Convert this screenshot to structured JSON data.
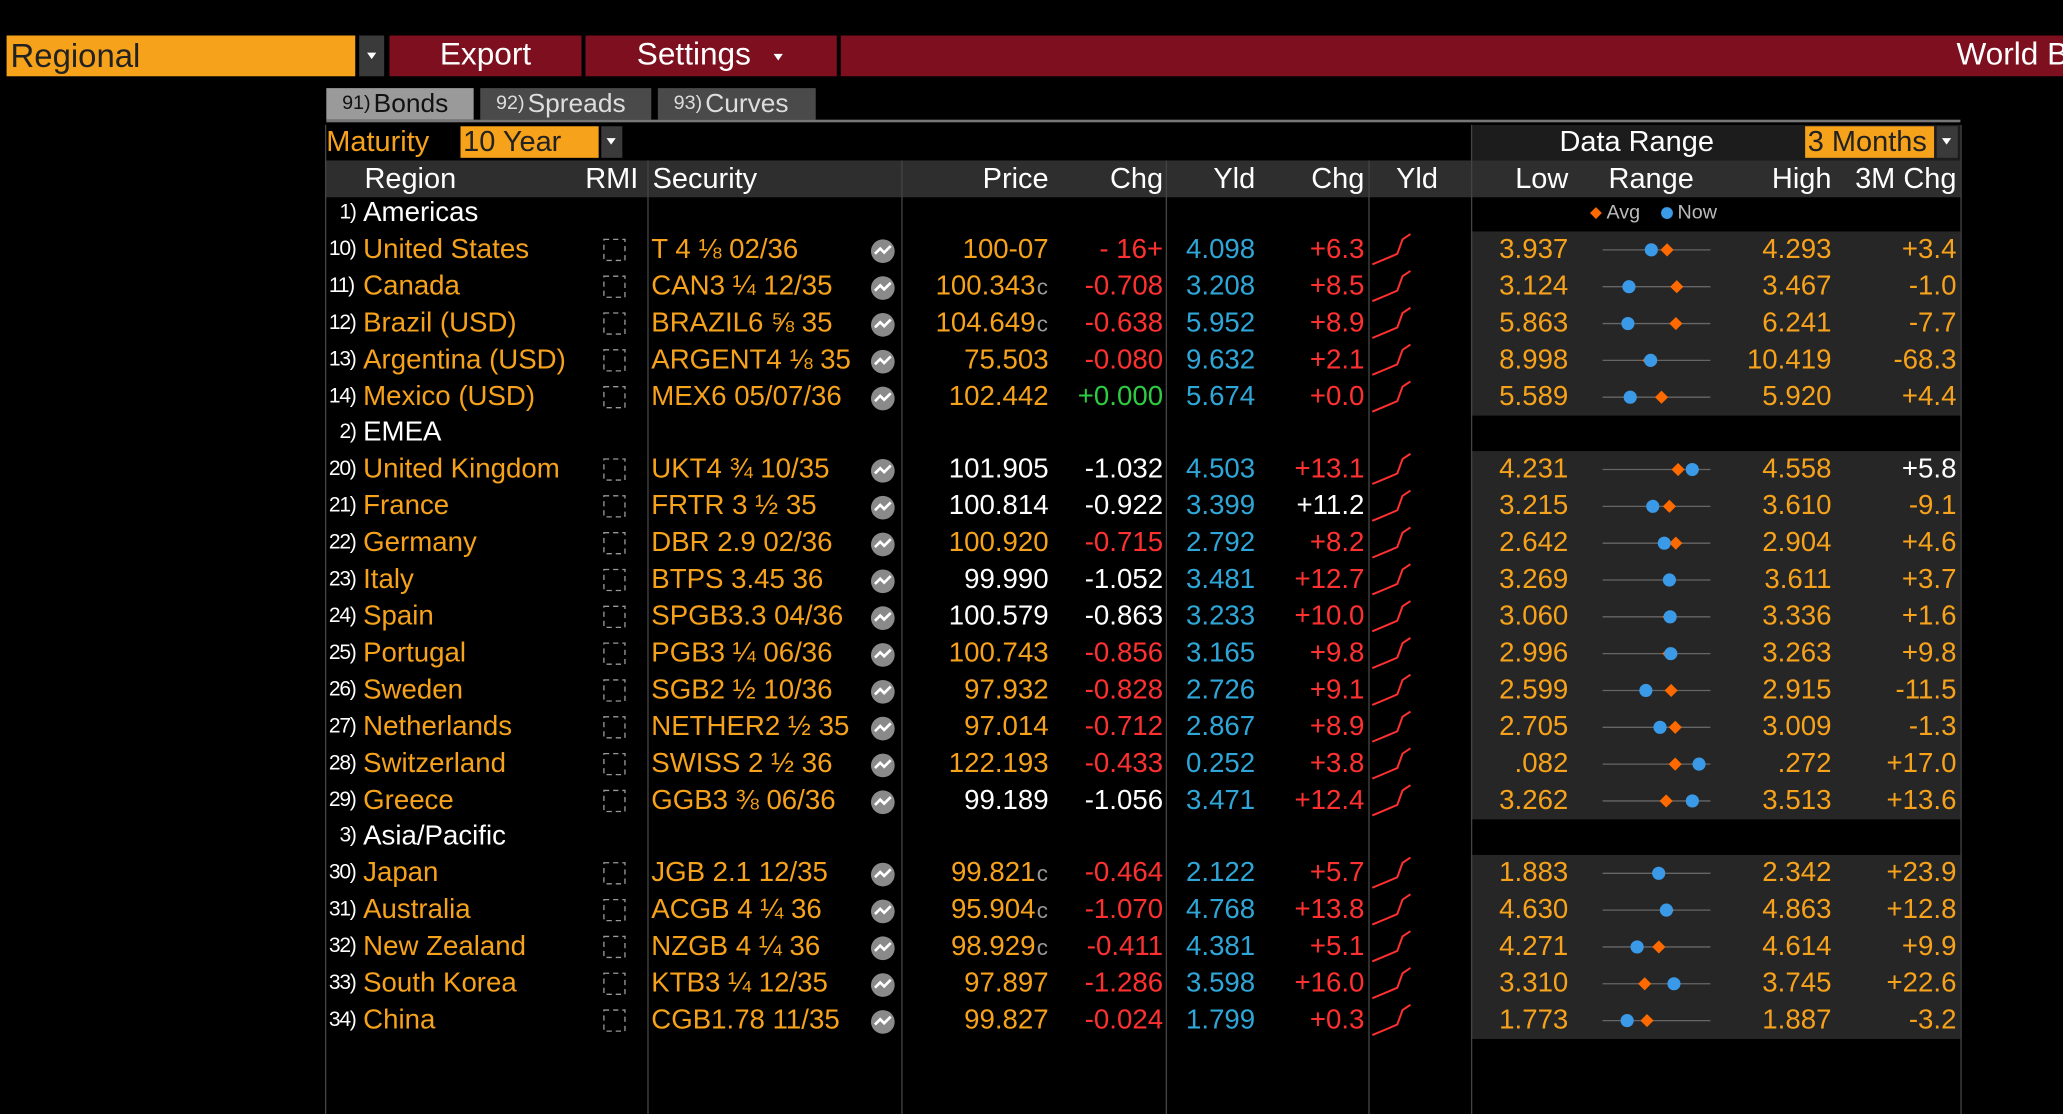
{
  "toolbar": {
    "menu": "Regional",
    "export": "Export",
    "settings": "Settings",
    "title": "World B"
  },
  "tabs": [
    {
      "num": "91)",
      "label": "Bonds"
    },
    {
      "num": "92)",
      "label": "Spreads"
    },
    {
      "num": "93)",
      "label": "Curves"
    }
  ],
  "maturity": {
    "label": "Maturity",
    "value": "10 Year"
  },
  "data_range": {
    "label": "Data Range",
    "value": "3 Months"
  },
  "headers": {
    "region": "Region",
    "rmi": "RMI",
    "security": "Security",
    "price": "Price",
    "chg": "Chg",
    "yld": "Yld",
    "yld_chg": "Chg",
    "yld_chart": "Yld",
    "low": "Low",
    "range": "Range",
    "high": "High",
    "chg_3m": "3M Chg"
  },
  "legend": {
    "avg": "Avg",
    "now": "Now"
  },
  "groups": [
    {
      "num": "1)",
      "name": "Americas",
      "rows": [
        {
          "num": "10)",
          "region": "United States",
          "security": "T 4 ⅛ 02/36",
          "price": "100-07",
          "price_color": "#f7a21b",
          "chg": "- 16+",
          "chg_color": "#ff3030",
          "yld": "4.098",
          "yld_chg": "+6.3",
          "yld_chg_color": "#ff3030",
          "low": "3.937",
          "high": "4.293",
          "chg_3m": "+3.4",
          "chg_3m_color": "#f7a21b",
          "avg": 4.15
        },
        {
          "num": "11)",
          "region": "Canada",
          "security": "CAN3 ¼ 12/35",
          "price": "100.343",
          "price_suffix": "c",
          "price_color": "#f7a21b",
          "chg": "-0.708",
          "chg_color": "#ff3030",
          "yld": "3.208",
          "yld_chg": "+8.5",
          "yld_chg_color": "#ff3030",
          "low": "3.124",
          "high": "3.467",
          "chg_3m": "-1.0",
          "chg_3m_color": "#f7a21b",
          "avg": 3.36
        },
        {
          "num": "12)",
          "region": "Brazil (USD)",
          "security": "BRAZIL6 ⅝ 35",
          "price": "104.649",
          "price_suffix": "c",
          "price_color": "#f7a21b",
          "chg": "-0.638",
          "chg_color": "#ff3030",
          "yld": "5.952",
          "yld_chg": "+8.9",
          "yld_chg_color": "#ff3030",
          "low": "5.863",
          "high": "6.241",
          "chg_3m": "-7.7",
          "chg_3m_color": "#f7a21b",
          "avg": 6.12
        },
        {
          "num": "13)",
          "region": "Argentina (USD)",
          "security": "ARGENT4 ⅛ 35",
          "price": "75.503",
          "price_color": "#f7a21b",
          "chg": "-0.080",
          "chg_color": "#ff3030",
          "yld": "9.632",
          "yld_chg": "+2.1",
          "yld_chg_color": "#ff3030",
          "low": "8.998",
          "high": "10.419",
          "chg_3m": "-68.3",
          "chg_3m_color": "#f7a21b",
          "avg": 9.61
        },
        {
          "num": "14)",
          "region": "Mexico (USD)",
          "security": "MEX6 05/07/36",
          "price": "102.442",
          "price_color": "#f7a21b",
          "chg": "+0.000",
          "chg_color": "#2ecc40",
          "yld": "5.674",
          "yld_chg": "+0.0",
          "yld_chg_color": "#ff3030",
          "low": "5.589",
          "high": "5.920",
          "chg_3m": "+4.4",
          "chg_3m_color": "#f7a21b",
          "avg": 5.77
        }
      ]
    },
    {
      "num": "2)",
      "name": "EMEA",
      "rows": [
        {
          "num": "20)",
          "region": "United Kingdom",
          "security": "UKT4 ¾ 10/35",
          "price": "101.905",
          "price_color": "#ffffff",
          "chg": "-1.032",
          "chg_color": "#ffffff",
          "yld": "4.503",
          "yld_chg": "+13.1",
          "yld_chg_color": "#ff3030",
          "low": "4.231",
          "high": "4.558",
          "chg_3m": "+5.8",
          "chg_3m_color": "#ffffff",
          "avg": 4.46
        },
        {
          "num": "21)",
          "region": "France",
          "security": "FRTR 3 ½ 35",
          "price": "100.814",
          "price_color": "#ffffff",
          "chg": "-0.922",
          "chg_color": "#ffffff",
          "yld": "3.399",
          "yld_chg": "+11.2",
          "yld_chg_color": "#ffffff",
          "low": "3.215",
          "high": "3.610",
          "chg_3m": "-9.1",
          "chg_3m_color": "#f7a21b",
          "avg": 3.46
        },
        {
          "num": "22)",
          "region": "Germany",
          "security": "DBR 2.9 02/36",
          "price": "100.920",
          "price_color": "#f7a21b",
          "chg": "-0.715",
          "chg_color": "#ff3030",
          "yld": "2.792",
          "yld_chg": "+8.2",
          "yld_chg_color": "#ff3030",
          "low": "2.642",
          "high": "2.904",
          "chg_3m": "+4.6",
          "chg_3m_color": "#f7a21b",
          "avg": 2.82
        },
        {
          "num": "23)",
          "region": "Italy",
          "security": "BTPS 3.45 36",
          "price": "99.990",
          "price_color": "#ffffff",
          "chg": "-1.052",
          "chg_color": "#ffffff",
          "yld": "3.481",
          "yld_chg": "+12.7",
          "yld_chg_color": "#ff3030",
          "low": "3.269",
          "high": "3.611",
          "chg_3m": "+3.7",
          "chg_3m_color": "#f7a21b",
          "avg": 3.48
        },
        {
          "num": "24)",
          "region": "Spain",
          "security": "SPGB3.3 04/36",
          "price": "100.579",
          "price_color": "#ffffff",
          "chg": "-0.863",
          "chg_color": "#ffffff",
          "yld": "3.233",
          "yld_chg": "+10.0",
          "yld_chg_color": "#ff3030",
          "low": "3.060",
          "high": "3.336",
          "chg_3m": "+1.6",
          "chg_3m_color": "#f7a21b",
          "avg": 3.23
        },
        {
          "num": "25)",
          "region": "Portugal",
          "security": "PGB3 ¼ 06/36",
          "price": "100.743",
          "price_color": "#f7a21b",
          "chg": "-0.856",
          "chg_color": "#ff3030",
          "yld": "3.165",
          "yld_chg": "+9.8",
          "yld_chg_color": "#ff3030",
          "low": "2.996",
          "high": "3.263",
          "chg_3m": "+9.8",
          "chg_3m_color": "#f7a21b",
          "avg": 3.16
        },
        {
          "num": "26)",
          "region": "Sweden",
          "security": "SGB2 ½ 10/36",
          "price": "97.932",
          "price_color": "#f7a21b",
          "chg": "-0.828",
          "chg_color": "#ff3030",
          "yld": "2.726",
          "yld_chg": "+9.1",
          "yld_chg_color": "#ff3030",
          "low": "2.599",
          "high": "2.915",
          "chg_3m": "-11.5",
          "chg_3m_color": "#f7a21b",
          "avg": 2.8
        },
        {
          "num": "27)",
          "region": "Netherlands",
          "security": "NETHER2 ½ 35",
          "price": "97.014",
          "price_color": "#f7a21b",
          "chg": "-0.712",
          "chg_color": "#ff3030",
          "yld": "2.867",
          "yld_chg": "+8.9",
          "yld_chg_color": "#ff3030",
          "low": "2.705",
          "high": "3.009",
          "chg_3m": "-1.3",
          "chg_3m_color": "#f7a21b",
          "avg": 2.91
        },
        {
          "num": "28)",
          "region": "Switzerland",
          "security": "SWISS 2 ½ 36",
          "price": "122.193",
          "price_color": "#f7a21b",
          "chg": "-0.433",
          "chg_color": "#ff3030",
          "yld": "0.252",
          "yld_chg": "+3.8",
          "yld_chg_color": "#ff3030",
          "low": ".082",
          "high": ".272",
          "chg_3m": "+17.0",
          "chg_3m_color": "#f7a21b",
          "avg": 0.21
        },
        {
          "num": "29)",
          "region": "Greece",
          "security": "GGB3 ⅜ 06/36",
          "price": "99.189",
          "price_color": "#ffffff",
          "chg": "-1.056",
          "chg_color": "#ffffff",
          "yld": "3.471",
          "yld_chg": "+12.4",
          "yld_chg_color": "#ff3030",
          "low": "3.262",
          "high": "3.513",
          "chg_3m": "+13.6",
          "chg_3m_color": "#f7a21b",
          "avg": 3.41
        }
      ]
    },
    {
      "num": "3)",
      "name": "Asia/Pacific",
      "rows": [
        {
          "num": "30)",
          "region": "Japan",
          "security": "JGB 2.1 12/35",
          "price": "99.821",
          "price_suffix": "c",
          "price_color": "#f7a21b",
          "chg": "-0.464",
          "chg_color": "#ff3030",
          "yld": "2.122",
          "yld_chg": "+5.7",
          "yld_chg_color": "#ff3030",
          "low": "1.883",
          "high": "2.342",
          "chg_3m": "+23.9",
          "chg_3m_color": "#f7a21b",
          "avg": 2.12
        },
        {
          "num": "31)",
          "region": "Australia",
          "security": "ACGB 4 ¼ 36",
          "price": "95.904",
          "price_suffix": "c",
          "price_color": "#f7a21b",
          "chg": "-1.070",
          "chg_color": "#ff3030",
          "yld": "4.768",
          "yld_chg": "+13.8",
          "yld_chg_color": "#ff3030",
          "low": "4.630",
          "high": "4.863",
          "chg_3m": "+12.8",
          "chg_3m_color": "#f7a21b",
          "avg": 4.77
        },
        {
          "num": "32)",
          "region": "New Zealand",
          "security": "NZGB 4 ¼ 36",
          "price": "98.929",
          "price_suffix": "c",
          "price_color": "#f7a21b",
          "chg": "-0.411",
          "chg_color": "#ff3030",
          "yld": "4.381",
          "yld_chg": "+5.1",
          "yld_chg_color": "#ff3030",
          "low": "4.271",
          "high": "4.614",
          "chg_3m": "+9.9",
          "chg_3m_color": "#f7a21b",
          "avg": 4.45
        },
        {
          "num": "33)",
          "region": "South Korea",
          "security": "KTB3 ¼ 12/35",
          "price": "97.897",
          "price_color": "#f7a21b",
          "chg": "-1.286",
          "chg_color": "#ff3030",
          "yld": "3.598",
          "yld_chg": "+16.0",
          "yld_chg_color": "#ff3030",
          "low": "3.310",
          "high": "3.745",
          "chg_3m": "+22.6",
          "chg_3m_color": "#f7a21b",
          "avg": 3.48
        },
        {
          "num": "34)",
          "region": "China",
          "security": "CGB1.78 11/35",
          "price": "99.827",
          "price_color": "#f7a21b",
          "chg": "-0.024",
          "chg_color": "#ff3030",
          "yld": "1.799",
          "yld_chg": "+0.3",
          "yld_chg_color": "#ff3030",
          "low": "1.773",
          "high": "1.887",
          "chg_3m": "-3.2",
          "chg_3m_color": "#f7a21b",
          "avg": 1.82
        }
      ]
    }
  ]
}
